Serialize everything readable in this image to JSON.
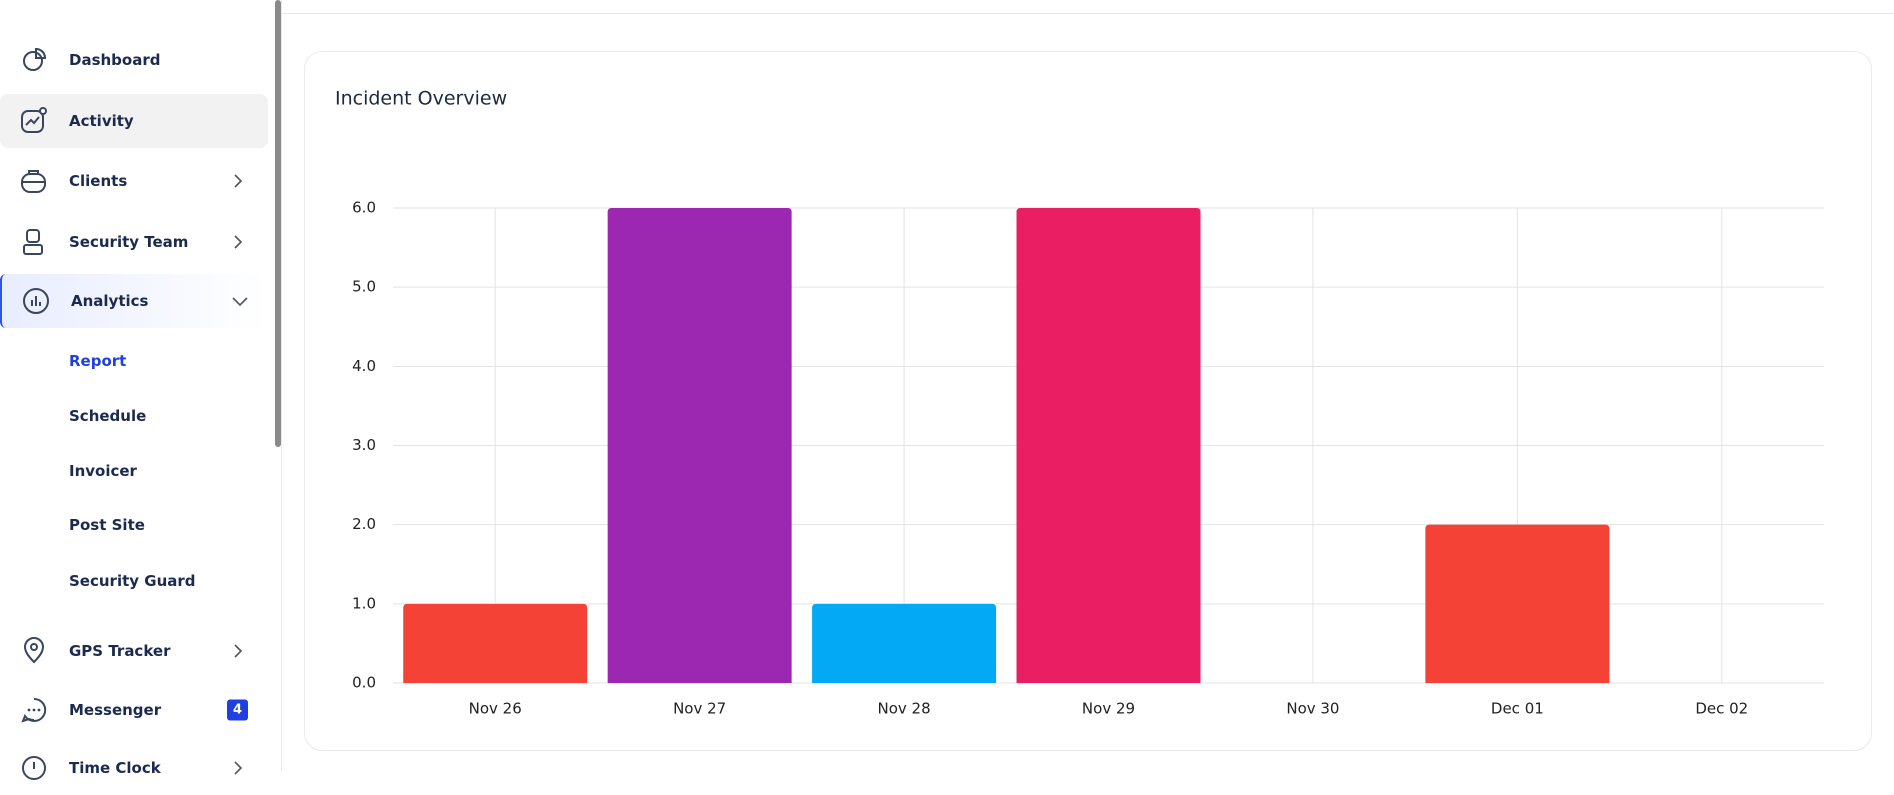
{
  "sidebar": {
    "items": [
      {
        "label": "Dashboard"
      },
      {
        "label": "Activity"
      },
      {
        "label": "Clients"
      },
      {
        "label": "Security Team"
      },
      {
        "label": "Analytics"
      },
      {
        "label": "Report"
      },
      {
        "label": "Schedule"
      },
      {
        "label": "Invoicer"
      },
      {
        "label": "Post Site"
      },
      {
        "label": "Security Guard"
      },
      {
        "label": "GPS Tracker"
      },
      {
        "label": "Messenger",
        "badge": 4
      },
      {
        "label": "Time Clock"
      }
    ]
  },
  "chart_data": {
    "type": "bar",
    "title": "Incident Overview",
    "categories": [
      "Nov 26",
      "Nov 27",
      "Nov 28",
      "Nov 29",
      "Nov 30",
      "Dec 01",
      "Dec 02"
    ],
    "values": [
      1,
      6,
      1,
      6,
      0,
      2,
      0
    ],
    "colors": [
      "#f44336",
      "#9c27b0",
      "#03a9f4",
      "#e91e63",
      "#f44336",
      "#f44336",
      "#f44336"
    ],
    "ylim": [
      0,
      6
    ],
    "yticks": [
      {
        "value": 0,
        "label": "0.0"
      },
      {
        "value": 1,
        "label": "1.0"
      },
      {
        "value": 2,
        "label": "2.0"
      },
      {
        "value": 3,
        "label": "3.0"
      },
      {
        "value": 4,
        "label": "4.0"
      },
      {
        "value": 5,
        "label": "5.0"
      },
      {
        "value": 6,
        "label": "6.0"
      }
    ],
    "grid": true
  }
}
